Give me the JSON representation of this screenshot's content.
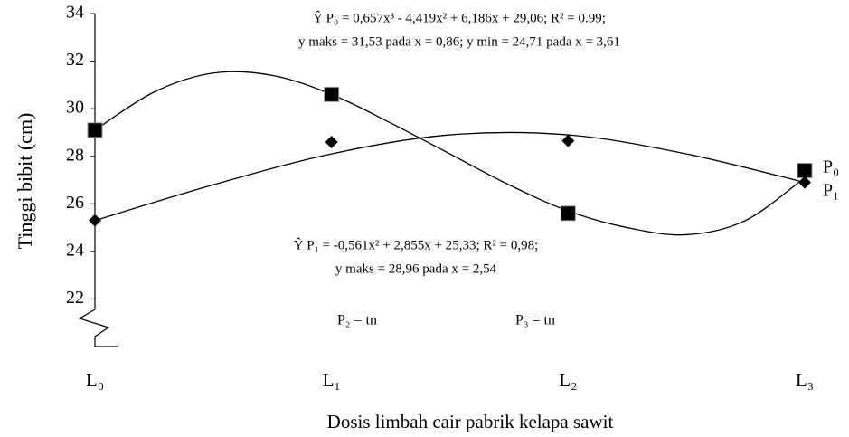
{
  "chart_data": {
    "type": "line",
    "x_label": "Dosis limbah cair pabrik kelapa sawit",
    "y_label": "Tinggi bibit  (cm)",
    "xlim": [
      0,
      3
    ],
    "xticks": [
      {
        "value": 0,
        "label": "L₀"
      },
      {
        "value": 1,
        "label": "L₁"
      },
      {
        "value": 2,
        "label": "L₂"
      },
      {
        "value": 3,
        "label": "L₃"
      }
    ],
    "ylim": [
      20,
      34
    ],
    "yticks": [
      22,
      24,
      26,
      28,
      30,
      32,
      34
    ],
    "series": [
      {
        "name": "P₀",
        "color": "#000000",
        "marker": "square",
        "x": [
          0,
          1,
          2,
          3
        ],
        "values": [
          29.1,
          30.6,
          25.6,
          27.4
        ],
        "curve": {
          "x": [
            0,
            0.25,
            0.5,
            0.75,
            1,
            1.25,
            1.5,
            1.75,
            2,
            2.25,
            2.5,
            2.75,
            3
          ],
          "values": [
            29.1,
            30.7,
            31.5,
            31.4,
            30.6,
            29.4,
            28.1,
            26.8,
            25.7,
            25.0,
            24.7,
            25.3,
            27.1
          ]
        }
      },
      {
        "name": "P₁",
        "color": "#000000",
        "marker": "diamond",
        "x": [
          0,
          1,
          2,
          3
        ],
        "values": [
          25.3,
          28.6,
          28.65,
          26.9
        ],
        "curve": {
          "x": [
            0,
            0.5,
            1,
            1.5,
            2,
            2.5,
            3
          ],
          "values": [
            25.3,
            26.8,
            28.1,
            28.9,
            28.9,
            28.1,
            26.9
          ]
        }
      }
    ],
    "annotations": [
      "Ŷ P₀ = 0,657x³ - 4,419x² + 6,186x + 29,06; R² = 0.99;",
      "y maks = 31,53 pada x = 0,86; y min = 24,71 pada x = 3,61",
      "Ŷ P₁ = -0,561x² + 2,855x + 25,33; R² = 0,98;",
      "y maks = 28,96 pada x = 2,54",
      "P₂ = tn",
      "P₃ = tn"
    ]
  }
}
